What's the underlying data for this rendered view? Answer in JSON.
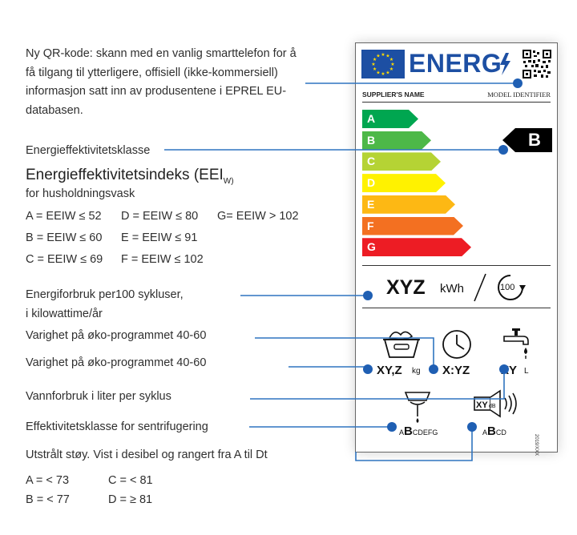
{
  "qr_description": "Ny QR-kode: skann med en vanlig smarttelefon for å få tilgang til ytterligere, offisiell (ikke-kommersiell) informasjon satt inn av produsentene i EPREL EU-databasen.",
  "energy_class_label": "Energieffektivitetsklasse",
  "eei": {
    "title": "Energieffektivitetsindeks (EEI",
    "title_sub": "W)",
    "subtitle": "for husholdningsvask",
    "rows": [
      [
        "A = EEIW  ≤ 52",
        "D = EEIW ≤ 80",
        "G= EEIW > 102"
      ],
      [
        "B = EEIW  ≤ 60",
        "E = EEIW ≤ 91",
        ""
      ],
      [
        "C = EEIW ≤ 69",
        "F = EEIW ≤ 102",
        ""
      ]
    ]
  },
  "consumption_label": {
    "line1": "Energiforbruk per100 sykluser,",
    "line2": "i kilowattime/år"
  },
  "duration_label_1": "Varighet på øko-programmet 40-60",
  "duration_label_2": "Varighet på øko-programmet 40-60",
  "water_label": "Vannforbruk i liter per syklus",
  "spin_label": "Effektivitetsklasse for sentrifugering",
  "noise": {
    "label": "Utstrålt støy. Vist i desibel og rangert fra A til Dt",
    "classes": [
      [
        "A = < 73",
        "C = < 81"
      ],
      [
        "B = < 77",
        "D = ≥ 81"
      ]
    ]
  },
  "energy_label": {
    "energy_word": "ENERG",
    "supplier": "SUPPLIER'S NAME",
    "model": "MODEL IDENTIFIER",
    "bars": [
      "A",
      "B",
      "C",
      "D",
      "E",
      "F",
      "G"
    ],
    "bar_colors": [
      "#00a650",
      "#4db848",
      "#b5d334",
      "#fff200",
      "#fdb814",
      "#f37021",
      "#ed1c24"
    ],
    "class_marker": "B",
    "kwh_value": "XYZ",
    "kwh_unit": "kWh",
    "cycles": "100",
    "capacity_value": "XY,Z",
    "capacity_unit": "kg",
    "duration_value": "X:YZ",
    "water_value": "XY",
    "water_unit": "L",
    "spin_class_small_a": "A",
    "spin_class_big": "B",
    "spin_class_rest": "CDEFG",
    "noise_value": "XY",
    "noise_unit": "dB",
    "noise_class_small_a": "A",
    "noise_class_big": "B",
    "noise_class_rest": "CD",
    "regulation": "2019/XXX",
    "icons": [
      "eu-flag-icon",
      "lightning-icon",
      "qr-code-icon",
      "cycle-arrow-icon",
      "laundry-basket-icon",
      "clock-icon",
      "water-tap-icon",
      "spin-drum-icon",
      "speaker-icon"
    ]
  }
}
